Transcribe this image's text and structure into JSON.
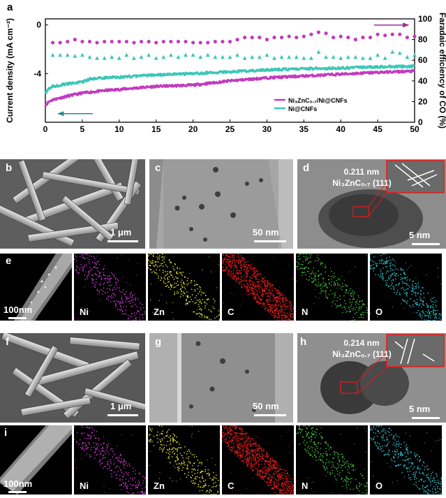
{
  "panel_a": {
    "label": "a",
    "chart_data": {
      "type": "line+scatter",
      "xlabel": "Time (h)",
      "ylabel_left": "Current density (mA cm⁻²)",
      "ylabel_right": "Faradaic efficiency of CO (%)",
      "xlim": [
        0,
        50
      ],
      "ylim_left": [
        -8,
        0.5
      ],
      "ylim_right": [
        0,
        100
      ],
      "x_ticks": [
        "0",
        "5",
        "10",
        "15",
        "20",
        "25",
        "30",
        "35",
        "40",
        "45",
        "50"
      ],
      "y_left_ticks": [
        "0",
        "-4"
      ],
      "y_right_ticks": [
        "100",
        "80",
        "60",
        "40",
        "20",
        "0"
      ],
      "legend": [
        {
          "name": "Ni₃ZnC₀.₇/Ni@CNFs",
          "color": "#c23bbf"
        },
        {
          "name": "Ni@CNFs",
          "color": "#3cc7b8"
        }
      ],
      "series": [
        {
          "name": "Ni₃ZnC₀.₇/Ni@CNFs current",
          "axis": "left",
          "color": "#c23bbf",
          "x": [
            0,
            0.5,
            1,
            2,
            3,
            5,
            8,
            10,
            15,
            20,
            25,
            30,
            35,
            40,
            45,
            50
          ],
          "y": [
            -6.6,
            -6.3,
            -6.15,
            -6.0,
            -5.85,
            -5.6,
            -5.4,
            -5.3,
            -5.05,
            -4.95,
            -4.6,
            -4.35,
            -4.2,
            -4.05,
            -3.9,
            -3.8
          ]
        },
        {
          "name": "Ni@CNFs current",
          "axis": "left",
          "color": "#3cc7b8",
          "x": [
            0,
            0.5,
            1,
            2,
            3,
            5,
            6,
            8,
            10,
            15,
            20,
            25,
            30,
            35,
            40,
            45,
            50
          ],
          "y": [
            -5.6,
            -5.2,
            -5.05,
            -4.95,
            -4.85,
            -4.7,
            -4.45,
            -4.35,
            -4.3,
            -4.1,
            -4.0,
            -3.85,
            -3.7,
            -3.6,
            -3.55,
            -3.45,
            -3.4
          ]
        },
        {
          "name": "Ni₃ZnC₀.₇/Ni@CNFs FE",
          "axis": "right",
          "color": "#c23bbf",
          "marker": "circle",
          "x": [
            1,
            2,
            3,
            4,
            5,
            6,
            7,
            8,
            9,
            10,
            11,
            12,
            13,
            14,
            15,
            16,
            17,
            18,
            19,
            20,
            21,
            22,
            23,
            24,
            25,
            26,
            27,
            28,
            29,
            30,
            31,
            32,
            33,
            34,
            35,
            36,
            37,
            38,
            39,
            40,
            41,
            42,
            43,
            44,
            45,
            46,
            47,
            48,
            49,
            50
          ],
          "y": [
            77,
            77,
            78,
            80,
            78,
            78,
            77,
            78,
            78,
            78,
            78,
            77,
            78,
            78,
            77,
            78,
            78,
            78,
            78,
            77,
            77,
            77,
            78,
            78,
            78,
            80,
            82,
            82,
            82,
            80,
            82,
            82,
            83,
            82,
            83,
            85,
            87,
            86,
            82,
            83,
            82,
            80,
            82,
            82,
            85,
            84,
            85,
            85,
            82,
            83
          ]
        },
        {
          "name": "Ni@CNFs FE",
          "axis": "right",
          "color": "#3cc7b8",
          "marker": "triangle",
          "x": [
            1,
            2,
            3,
            4,
            5,
            6,
            7,
            8,
            9,
            10,
            11,
            12,
            13,
            14,
            15,
            16,
            17,
            18,
            19,
            20,
            21,
            22,
            23,
            24,
            25,
            26,
            27,
            28,
            29,
            30,
            31,
            32,
            33,
            34,
            35,
            36,
            37,
            38,
            39,
            40,
            41,
            42,
            43,
            44,
            45,
            46,
            47,
            48,
            49,
            50
          ],
          "y": [
            65,
            65,
            65,
            64,
            65,
            63,
            62,
            62,
            63,
            62,
            65,
            62,
            63,
            65,
            62,
            63,
            65,
            63,
            65,
            65,
            63,
            65,
            63,
            63,
            63,
            65,
            62,
            63,
            63,
            65,
            62,
            63,
            63,
            63,
            62,
            62,
            68,
            63,
            63,
            62,
            63,
            63,
            62,
            62,
            65,
            62,
            68,
            67,
            63,
            65
          ]
        }
      ],
      "arrows": [
        {
          "direction": "right",
          "axis": "right",
          "color": "#9b2f9b"
        },
        {
          "direction": "left",
          "axis": "left",
          "color": "#2a8b83"
        }
      ]
    }
  },
  "row1": {
    "b": {
      "label": "b",
      "scale": "1 μm"
    },
    "c": {
      "label": "c",
      "scale": "50 nm"
    },
    "d": {
      "label": "d",
      "scale": "5 nm",
      "spacing": "0.211 nm",
      "phase": "Ni₃ZnC₀.₇ (111)"
    }
  },
  "row2": {
    "e": {
      "label": "e",
      "scale": "100nm"
    },
    "maps": [
      {
        "element": "Ni",
        "color": "#d23cd6"
      },
      {
        "element": "Zn",
        "color": "#e8e834"
      },
      {
        "element": "C",
        "color": "#e8191b"
      },
      {
        "element": "N",
        "color": "#3fc63b"
      },
      {
        "element": "O",
        "color": "#2fc8d4"
      }
    ]
  },
  "row3": {
    "f": {
      "label": "f",
      "scale": "1 μm"
    },
    "g": {
      "label": "g",
      "scale": "50 nm"
    },
    "h": {
      "label": "h",
      "scale": "5 nm",
      "spacing": "0.214 nm",
      "phase": "Ni₃ZnC₀.₇ (111)"
    }
  },
  "row4": {
    "i": {
      "label": "i",
      "scale": "100nm"
    },
    "maps": [
      {
        "element": "Ni",
        "color": "#d23cd6"
      },
      {
        "element": "Zn",
        "color": "#e8e834"
      },
      {
        "element": "C",
        "color": "#e8191b"
      },
      {
        "element": "N",
        "color": "#3fc63b"
      },
      {
        "element": "O",
        "color": "#2fc8d4"
      }
    ]
  }
}
